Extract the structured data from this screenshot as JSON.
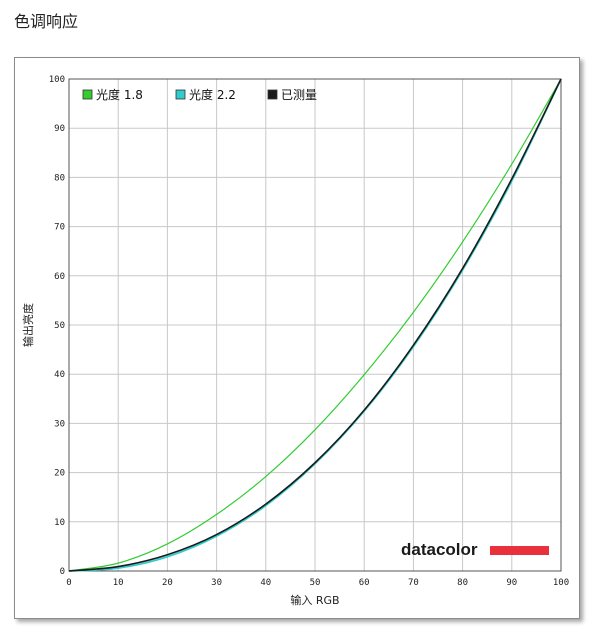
{
  "page": {
    "title": "色调响应"
  },
  "chart_data": {
    "type": "line",
    "xlabel": "输入 RGB",
    "ylabel": "输出亮度",
    "xlim": [
      0,
      100
    ],
    "ylim": [
      0,
      100
    ],
    "x_ticks": [
      0,
      10,
      20,
      30,
      40,
      50,
      60,
      70,
      80,
      90,
      100
    ],
    "y_ticks": [
      0,
      10,
      20,
      30,
      40,
      50,
      60,
      70,
      80,
      90,
      100
    ],
    "grid": true,
    "legend_position": "top-left",
    "x": [
      0,
      10,
      20,
      30,
      40,
      50,
      60,
      70,
      80,
      90,
      100
    ],
    "series": [
      {
        "name": "光度 1.8",
        "color": "#33cc33",
        "values": [
          0,
          1.6,
          5.5,
          11.5,
          19.2,
          28.7,
          39.9,
          52.6,
          66.9,
          82.7,
          100
        ]
      },
      {
        "name": "光度 2.2",
        "color": "#33cccc",
        "values": [
          0,
          0.6,
          2.9,
          7.1,
          13.3,
          21.8,
          32.5,
          45.6,
          61.2,
          79.3,
          100
        ]
      },
      {
        "name": "已测量",
        "color": "#1a1a1a",
        "values": [
          0,
          0.9,
          3.3,
          7.4,
          13.6,
          22.0,
          32.7,
          45.9,
          61.5,
          79.7,
          100
        ]
      }
    ]
  },
  "brand": {
    "name": "datacolor",
    "bar_color": "#e8313b"
  }
}
